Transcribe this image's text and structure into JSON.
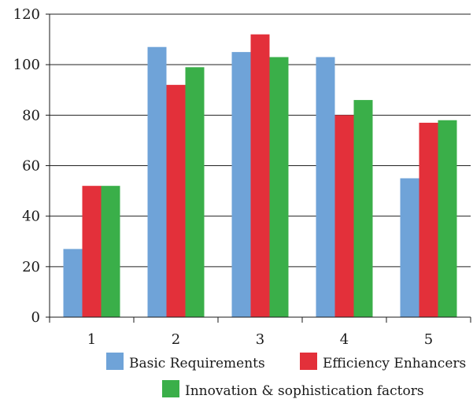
{
  "chart_data": {
    "type": "bar",
    "categories": [
      "1",
      "2",
      "3",
      "4",
      "5"
    ],
    "series": [
      {
        "name": "Basic Requirements",
        "values": [
          27,
          107,
          105,
          103,
          55
        ],
        "color": "#6fa3d8"
      },
      {
        "name": "Efficiency Enhancers",
        "values": [
          52,
          92,
          112,
          80,
          77
        ],
        "color": "#e3303a"
      },
      {
        "name": "Innovation & sophistication factors",
        "values": [
          52,
          99,
          103,
          86,
          78
        ],
        "color": "#3aaf49"
      }
    ],
    "yticks": [
      "0",
      "20",
      "40",
      "60",
      "80",
      "100",
      "120"
    ],
    "ylim": [
      0,
      120
    ],
    "grid": true,
    "legend": "bottom"
  }
}
